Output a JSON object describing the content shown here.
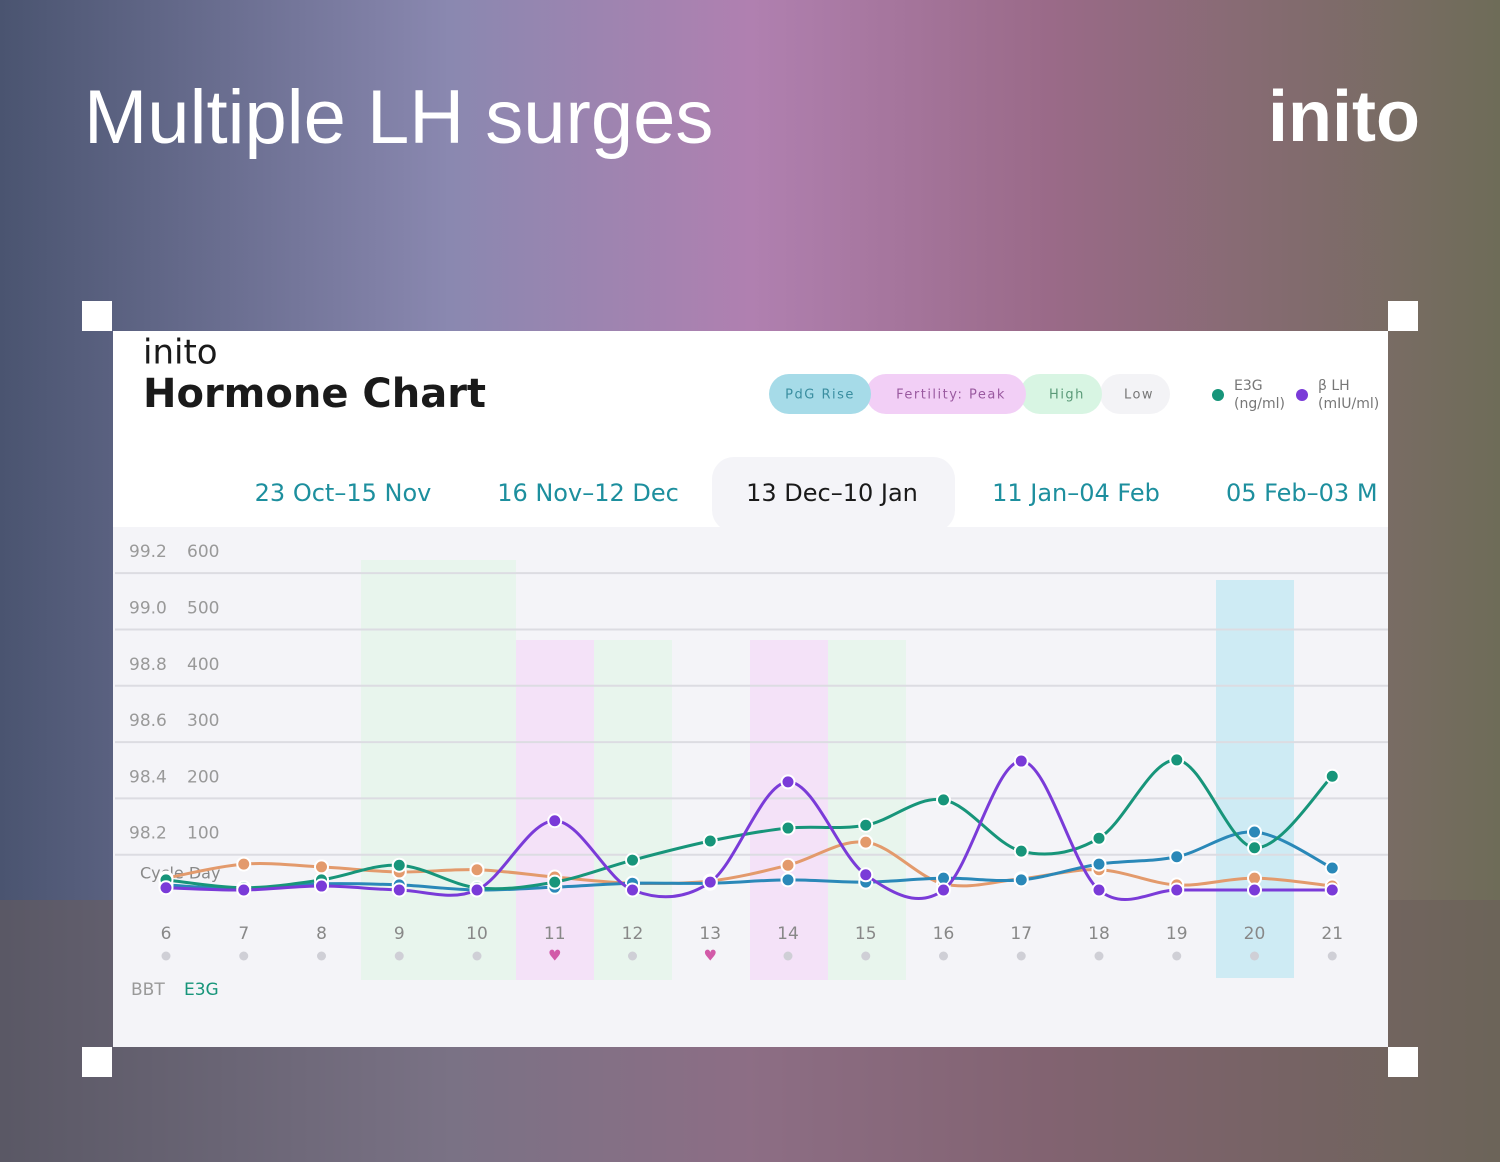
{
  "headline": "Multiple LH surges",
  "brand": "inito",
  "card": {
    "brand": "inito",
    "title": "Hormone Chart",
    "phase_legend": [
      "PdG Rise",
      "Fertility: Peak",
      "High",
      "Low"
    ],
    "tabs": [
      "23 Oct–15 Nov",
      "16 Nov–12 Dec",
      "13 Dec–10 Jan",
      "11 Jan–04 Feb",
      "05 Feb–03 M"
    ],
    "toggles": [
      "BBT",
      "E3G"
    ]
  },
  "chart_data": {
    "type": "line",
    "x_label": "Cycle Day",
    "categories": [
      "6",
      "7",
      "8",
      "9",
      "10",
      "11",
      "12",
      "13",
      "14",
      "15",
      "16",
      "17",
      "18",
      "19",
      "20",
      "21"
    ],
    "ylim": [
      0,
      650
    ],
    "yticks": [
      100,
      200,
      300,
      400,
      500,
      600
    ],
    "y2lim": [
      98.0,
      99.3
    ],
    "y2ticks": [
      98.2,
      98.4,
      98.6,
      98.8,
      {
        "value": 99.0,
        "label": "99.0"
      },
      99.2
    ],
    "grid": true,
    "series": [
      {
        "name": "E3G",
        "unit": "(ng/ml)",
        "color": "#17957a",
        "values": [
          18,
          4,
          18,
          44,
          4,
          14,
          53,
          87,
          110,
          115,
          160,
          69,
          92,
          231,
          75,
          202
        ]
      },
      {
        "name": "β LH",
        "unit": "(mIU/ml)",
        "color": "#7a3bd8",
        "values": [
          4,
          0,
          7,
          0,
          0,
          123,
          0,
          14,
          192,
          27,
          0,
          229,
          0,
          0,
          0,
          0
        ]
      },
      {
        "color": "#e39a6c",
        "values": [
          21,
          46,
          41,
          32,
          36,
          23,
          12,
          16,
          44,
          85,
          11,
          20,
          36,
          9,
          21,
          7
        ]
      },
      {
        "color": "#2a88b8",
        "values": [
          9,
          2,
          11,
          9,
          0,
          5,
          12,
          12,
          18,
          14,
          21,
          18,
          46,
          59,
          103,
          39
        ]
      }
    ]
  }
}
